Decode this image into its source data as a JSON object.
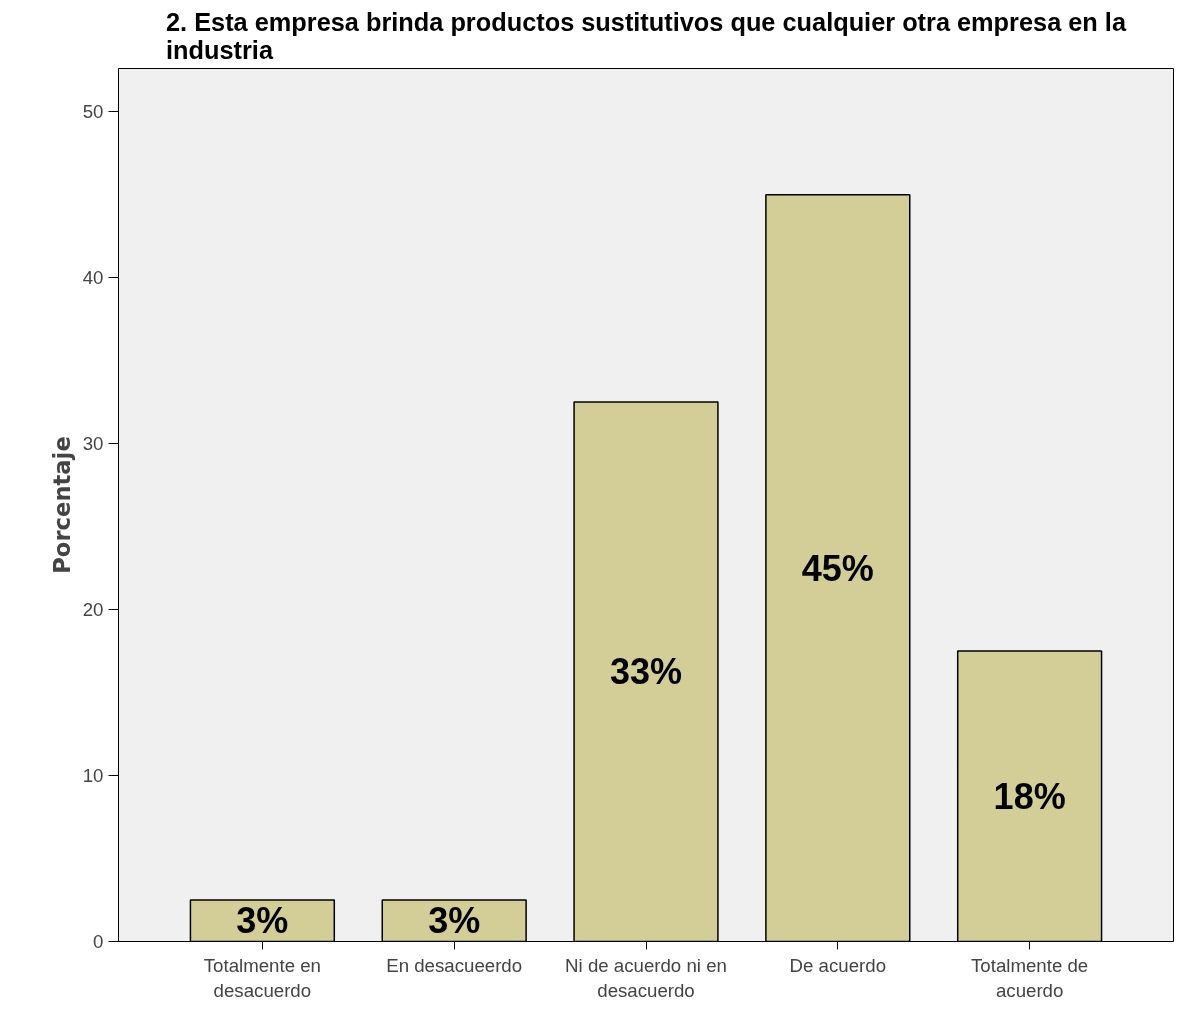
{
  "chart_data": {
    "type": "bar",
    "title": "2. Esta empresa brinda productos sustitutivos que cualquier otra empresa en la industria",
    "ylabel": "Porcentaje",
    "categories": [
      "Totalmente en desacuerdo",
      "En desacueerdo",
      "Ni de acuerdo ni en desacuerdo",
      "De acuerdo",
      "Totalmente de acuerdo"
    ],
    "values": [
      2.5,
      2.5,
      32.5,
      45,
      17.5
    ],
    "value_labels": [
      "3%",
      "3%",
      "33%",
      "45%",
      "18%"
    ],
    "color": "#d3ce97",
    "ylim": [
      0,
      52.6
    ],
    "yticks": [
      0,
      10,
      20,
      30,
      40,
      50
    ],
    "grid": false
  }
}
